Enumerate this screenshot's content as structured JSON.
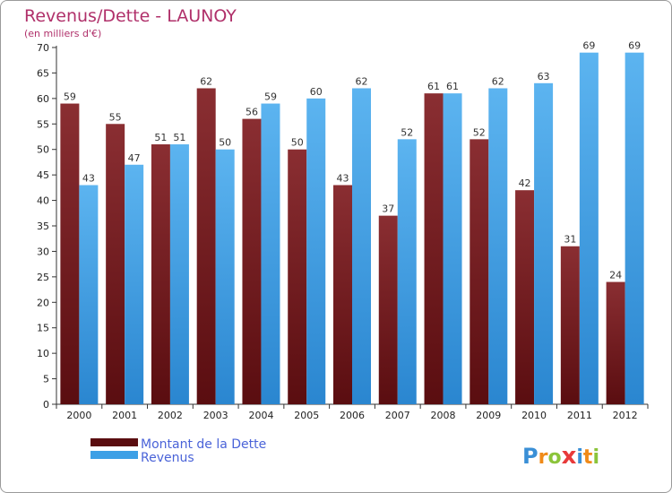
{
  "chart_data": {
    "type": "bar",
    "title": "Revenus/Dette - LAUNOY",
    "subtitle": "(en milliers d'€)",
    "categories": [
      "2000",
      "2001",
      "2002",
      "2003",
      "2004",
      "2005",
      "2006",
      "2007",
      "2008",
      "2009",
      "2010",
      "2011",
      "2012"
    ],
    "series": [
      {
        "name": "Montant de la Dette",
        "color": "#7a1e22",
        "values": [
          59,
          55,
          51,
          62,
          56,
          50,
          43,
          37,
          61,
          52,
          42,
          31,
          24
        ]
      },
      {
        "name": "Revenus",
        "color": "#3da0e6",
        "values": [
          43,
          47,
          51,
          50,
          59,
          60,
          62,
          52,
          61,
          62,
          63,
          69,
          69
        ]
      }
    ],
    "ylim": [
      0,
      70
    ],
    "yticks": [
      0,
      5,
      10,
      15,
      20,
      25,
      30,
      35,
      40,
      45,
      50,
      55,
      60,
      65,
      70
    ],
    "grid": false,
    "legend_placement": "bottom-left"
  },
  "logo": {
    "text": "Proxiti"
  }
}
